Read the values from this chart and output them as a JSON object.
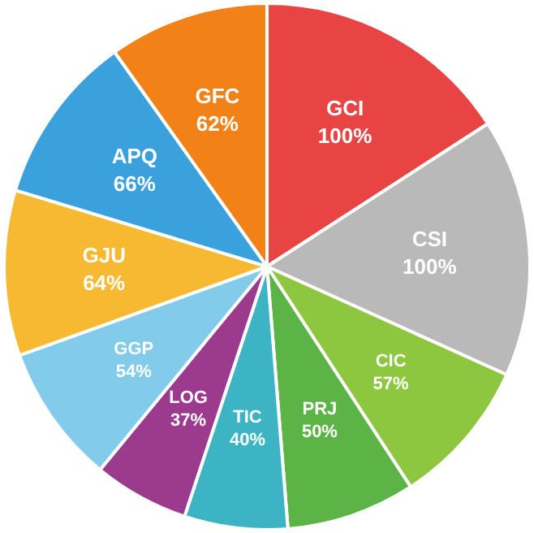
{
  "chart_data": {
    "type": "pie",
    "categories": [
      "GCI",
      "CSI",
      "CIC",
      "PRJ",
      "TIC",
      "LOG",
      "GGP",
      "GJU",
      "APQ",
      "GFC"
    ],
    "values": [
      100,
      100,
      57,
      50,
      40,
      37,
      54,
      64,
      66,
      62
    ],
    "value_labels": [
      "100%",
      "100%",
      "57%",
      "50%",
      "40%",
      "37%",
      "54%",
      "64%",
      "66%",
      "62%"
    ],
    "colors": [
      "#e84444",
      "#b9b9b9",
      "#8dc63f",
      "#5cb346",
      "#3cb4c4",
      "#9c3b8e",
      "#82cbea",
      "#f6b931",
      "#3aa1dd",
      "#f28118"
    ],
    "legend": false
  }
}
